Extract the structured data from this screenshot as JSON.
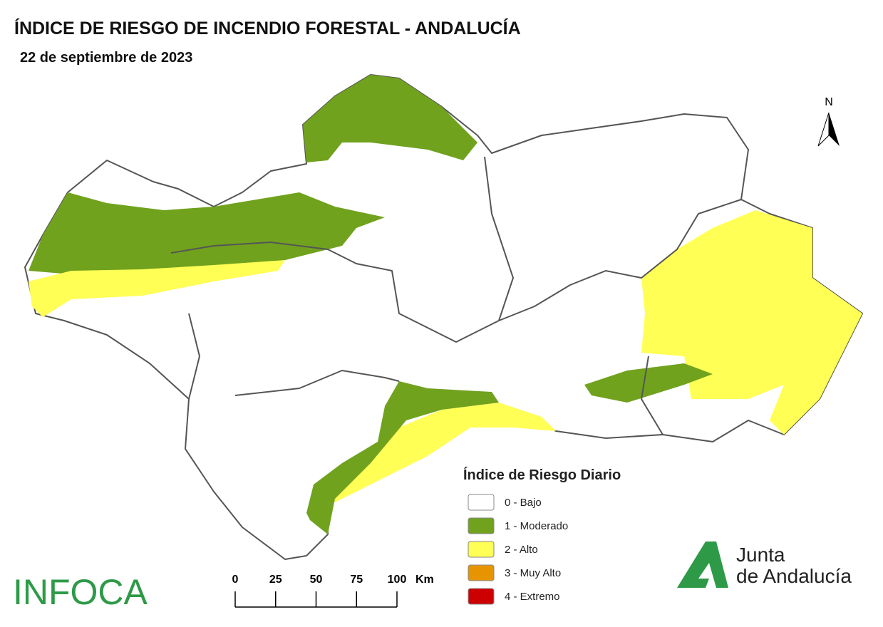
{
  "header": {
    "title": "ÍNDICE DE RIESGO DE INCENDIO FORESTAL - ANDALUCÍA",
    "date": "22 de septiembre de 2023"
  },
  "north": "N",
  "legend": {
    "title": "Índice de Riesgo Diario",
    "items": [
      {
        "label": "0 - Bajo",
        "color": "#ffffff"
      },
      {
        "label": "1 - Moderado",
        "color": "#70a21e"
      },
      {
        "label": "2 - Alto",
        "color": "#ffff55"
      },
      {
        "label": "3 - Muy Alto",
        "color": "#e69500"
      },
      {
        "label": "4 - Extremo",
        "color": "#cc0000"
      }
    ]
  },
  "scale": {
    "ticks": [
      0,
      25,
      50,
      75,
      100
    ],
    "unit": "Km"
  },
  "logos": {
    "infoca": "INFOCA",
    "junta_line1": "Junta",
    "junta_line2": "de Andalucía"
  }
}
